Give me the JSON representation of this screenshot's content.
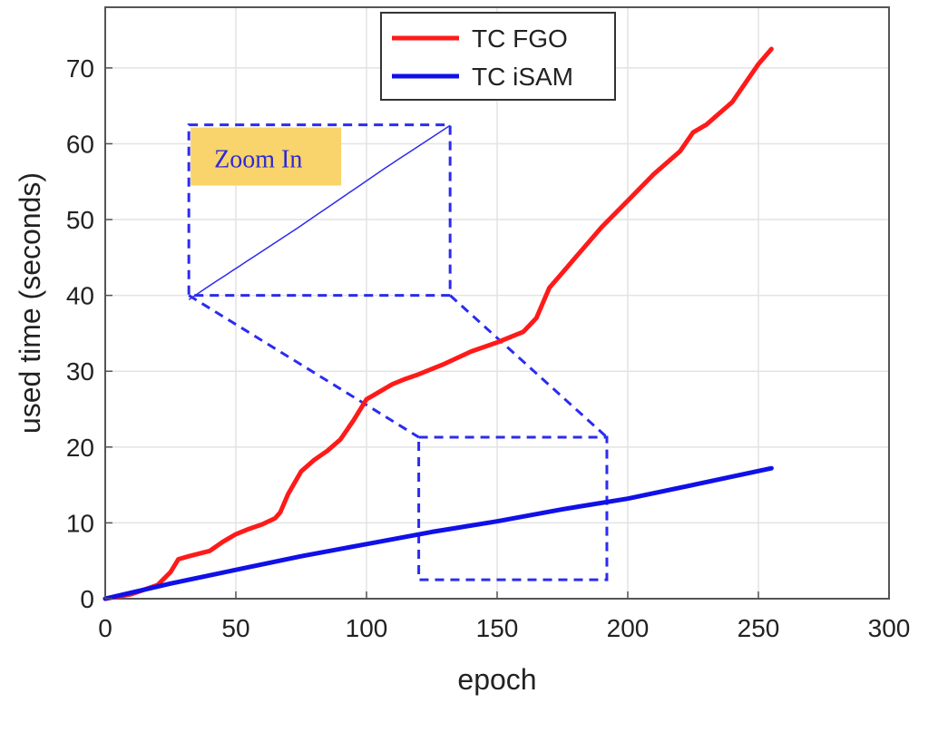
{
  "chart_data": {
    "type": "line",
    "xlabel": "epoch",
    "ylabel": "used time (seconds)",
    "xlim": [
      0,
      300
    ],
    "ylim": [
      0,
      78
    ],
    "xticks": [
      0,
      50,
      100,
      150,
      200,
      250,
      300
    ],
    "yticks": [
      0,
      10,
      20,
      30,
      40,
      50,
      60,
      70
    ],
    "grid": true,
    "legend_position": "top-center",
    "series": [
      {
        "name": "TC FGO",
        "color": "#ff1a1a",
        "x": [
          0,
          10,
          15,
          20,
          25,
          28,
          32,
          40,
          45,
          50,
          55,
          60,
          65,
          67,
          70,
          75,
          80,
          85,
          90,
          95,
          100,
          105,
          110,
          115,
          120,
          130,
          140,
          150,
          160,
          165,
          170,
          175,
          180,
          185,
          190,
          200,
          210,
          220,
          225,
          230,
          240,
          245,
          250,
          255
        ],
        "y": [
          0,
          0.6,
          1.2,
          1.8,
          3.5,
          5.2,
          5.6,
          6.3,
          7.5,
          8.5,
          9.2,
          9.8,
          10.6,
          11.4,
          13.8,
          16.8,
          18.3,
          19.5,
          21.0,
          23.5,
          26.3,
          27.3,
          28.3,
          29.0,
          29.6,
          31.0,
          32.6,
          33.8,
          35.2,
          37.0,
          41.0,
          43.0,
          45.0,
          47.0,
          49.0,
          52.5,
          56.0,
          59.0,
          61.5,
          62.5,
          65.5,
          68.0,
          70.5,
          72.5
        ]
      },
      {
        "name": "TC iSAM",
        "color": "#1010e8",
        "x": [
          0,
          25,
          50,
          75,
          100,
          125,
          150,
          175,
          200,
          225,
          255
        ],
        "y": [
          0,
          2.0,
          3.8,
          5.6,
          7.2,
          8.8,
          10.2,
          11.8,
          13.2,
          15.0,
          17.2
        ]
      }
    ],
    "annotations": {
      "zoom_label": "Zoom In",
      "zoom_label_color": "#f9d36b",
      "zoom_color": "#2b2bf0",
      "zoom_source_box": {
        "x": [
          120,
          192
        ],
        "y": [
          2.5,
          21.3
        ]
      },
      "zoom_inset_box": {
        "x": [
          32,
          132
        ],
        "y": [
          40,
          62.5
        ]
      }
    }
  }
}
